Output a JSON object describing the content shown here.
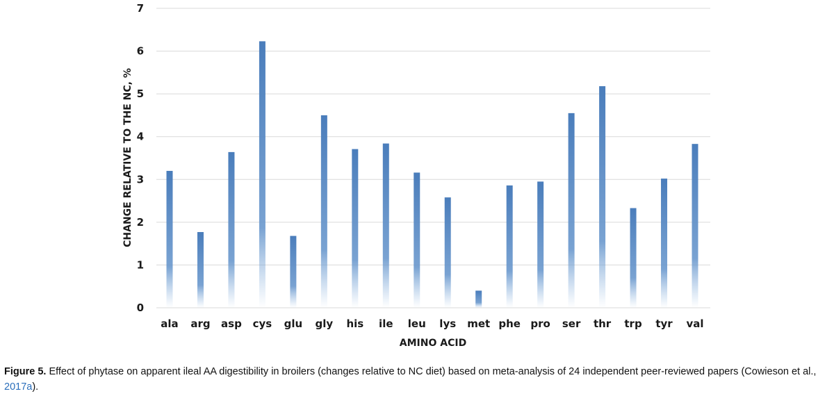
{
  "chart_data": {
    "type": "bar",
    "categories": [
      "ala",
      "arg",
      "asp",
      "cys",
      "glu",
      "gly",
      "his",
      "ile",
      "leu",
      "lys",
      "met",
      "phe",
      "pro",
      "ser",
      "thr",
      "trp",
      "tyr",
      "val"
    ],
    "values": [
      3.2,
      1.77,
      3.64,
      6.23,
      1.68,
      4.5,
      3.71,
      3.84,
      3.16,
      2.58,
      0.4,
      2.86,
      2.95,
      4.55,
      5.18,
      2.33,
      3.02,
      3.83
    ],
    "title": "",
    "xlabel": "AMINO ACID",
    "ylabel": "CHANGE RELATIVE TO THE NC, %",
    "ylim": [
      0,
      7
    ],
    "yticks": [
      0,
      1,
      2,
      3,
      4,
      5,
      6,
      7
    ],
    "grid": true,
    "bar_color": "#4f81bd"
  },
  "caption": {
    "label": "Figure 5.",
    "text_before_ref": " Effect of phytase on apparent ileal AA digestibility in broilers (changes relative to NC diet) based on meta-analysis of 24 independent peer-reviewed papers (Cowieson et al., ",
    "ref": "2017a",
    "text_after_ref": ")."
  }
}
